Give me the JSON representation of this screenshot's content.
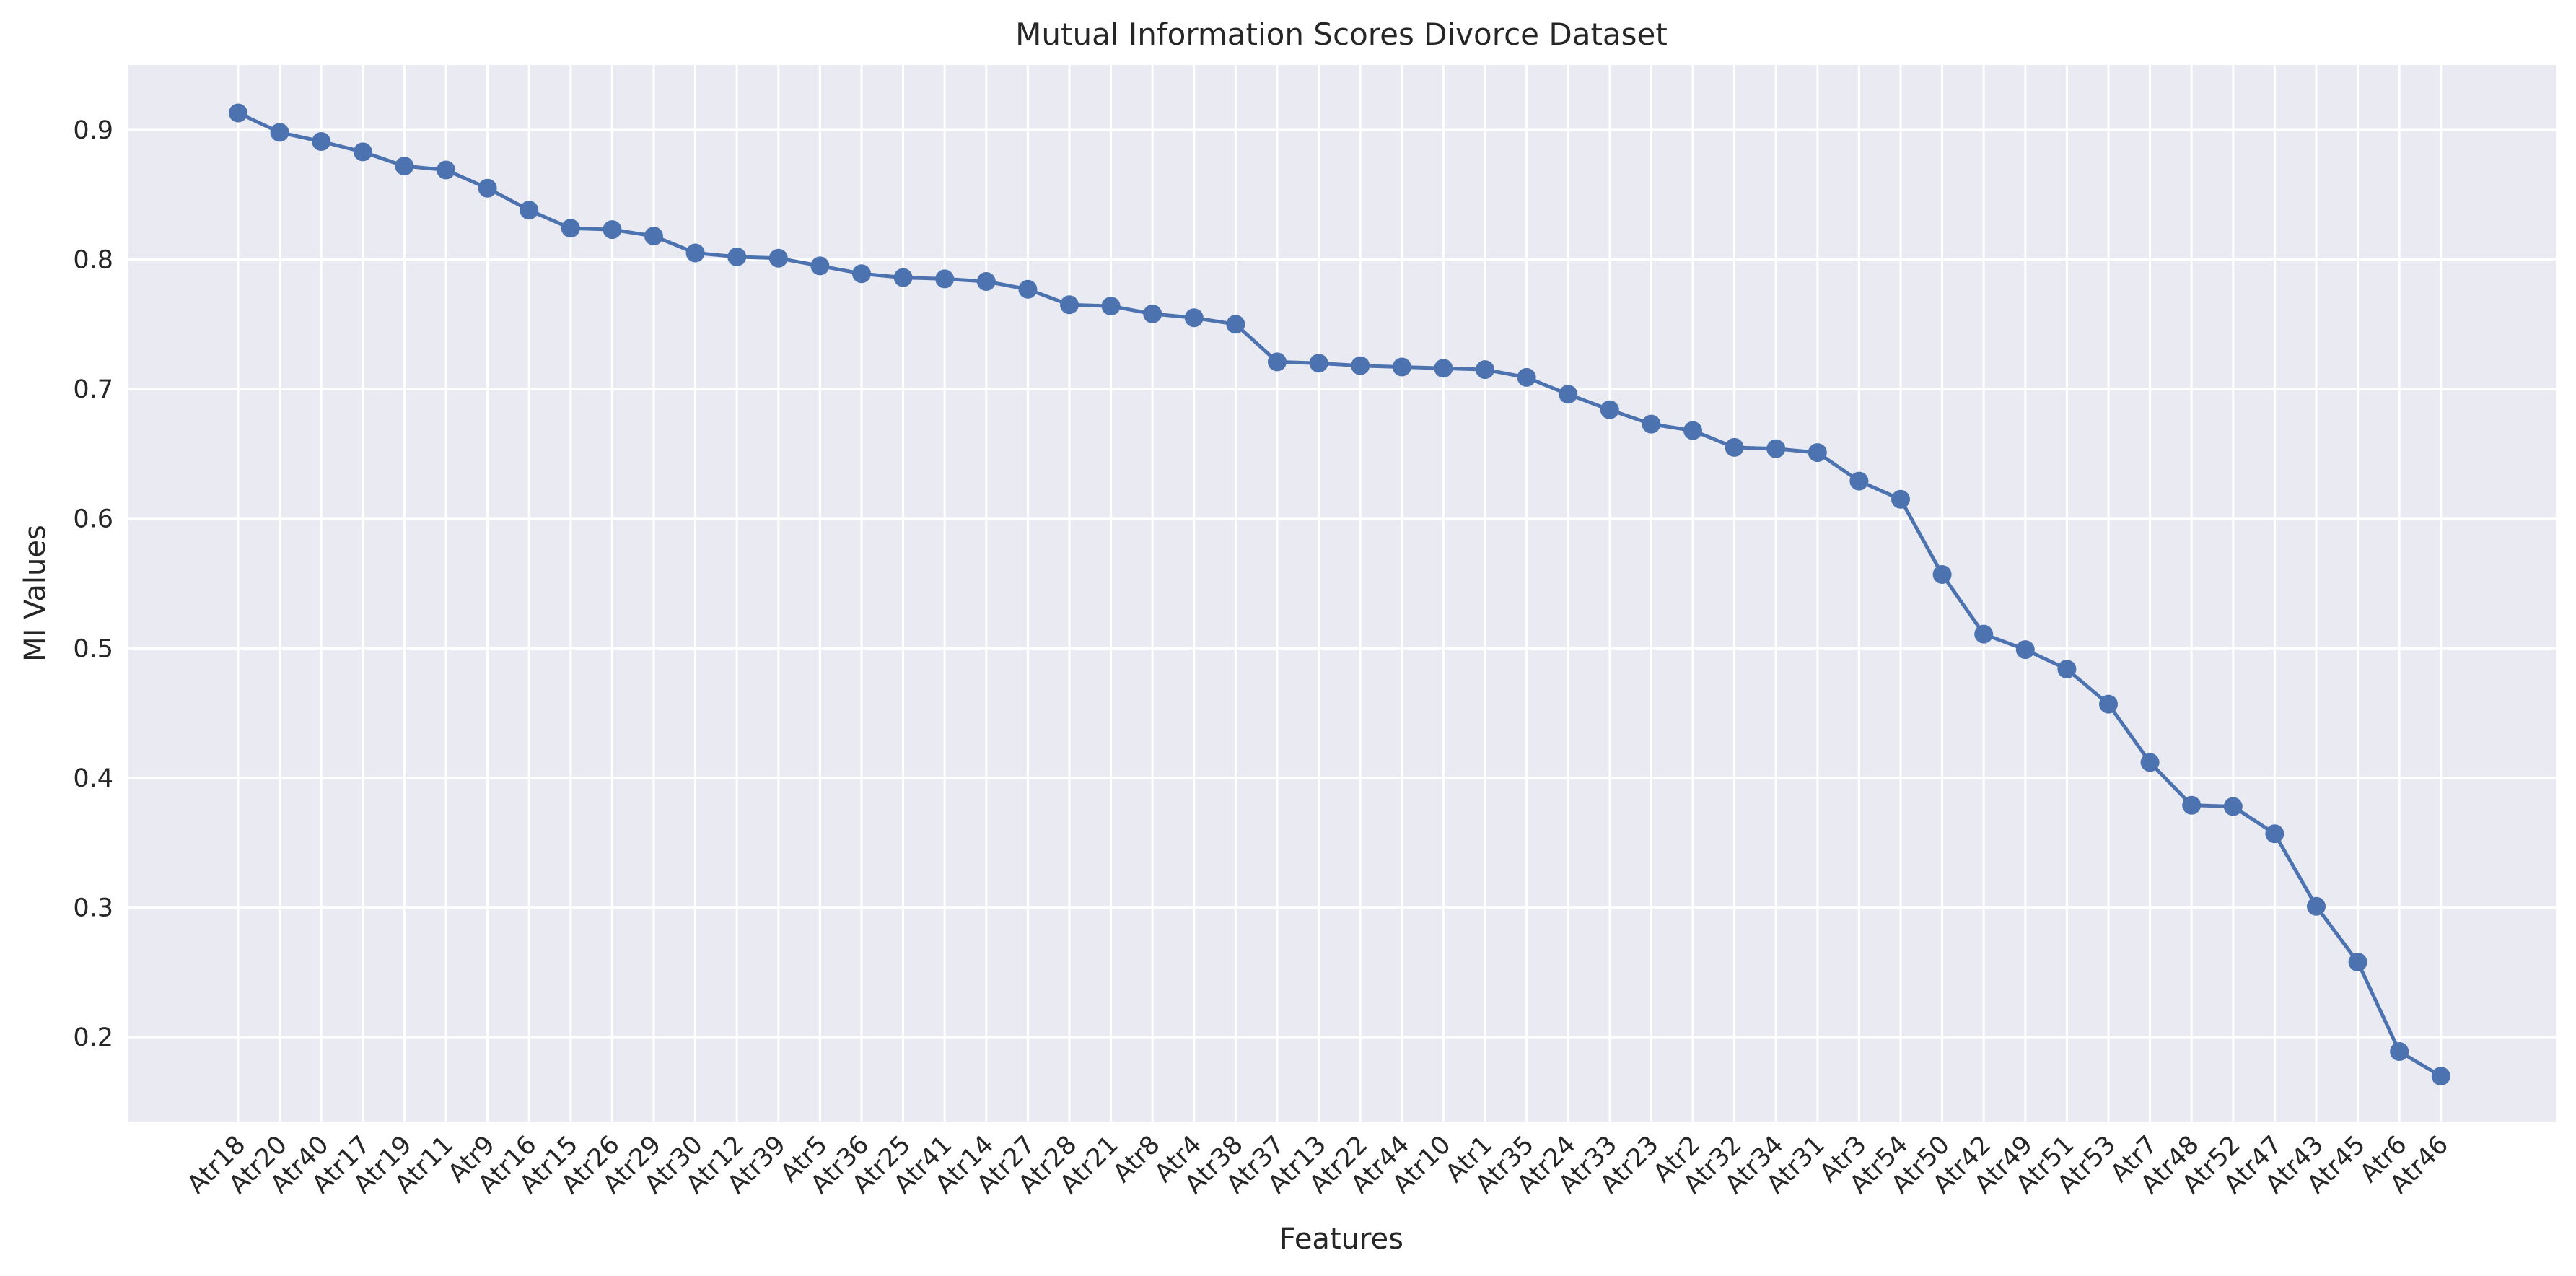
{
  "chart_data": {
    "type": "line",
    "title": "Mutual Information Scores Divorce Dataset",
    "xlabel": "Features",
    "ylabel": "MI Values",
    "ylim": [
      0.135,
      0.95
    ],
    "yticks": [
      0.2,
      0.3,
      0.4,
      0.5,
      0.6,
      0.7,
      0.8,
      0.9
    ],
    "grid": true,
    "marker": "circle",
    "colors": {
      "line": "#4c72b0",
      "plot_background": "#eaeaf2",
      "grid": "#ffffff"
    },
    "categories": [
      "Atr18",
      "Atr20",
      "Atr40",
      "Atr17",
      "Atr19",
      "Atr11",
      "Atr9",
      "Atr16",
      "Atr15",
      "Atr26",
      "Atr29",
      "Atr30",
      "Atr12",
      "Atr39",
      "Atr5",
      "Atr36",
      "Atr25",
      "Atr41",
      "Atr14",
      "Atr27",
      "Atr28",
      "Atr21",
      "Atr8",
      "Atr4",
      "Atr38",
      "Atr37",
      "Atr13",
      "Atr22",
      "Atr44",
      "Atr10",
      "Atr1",
      "Atr35",
      "Atr24",
      "Atr33",
      "Atr23",
      "Atr2",
      "Atr32",
      "Atr34",
      "Atr31",
      "Atr3",
      "Atr54",
      "Atr50",
      "Atr42",
      "Atr49",
      "Atr51",
      "Atr53",
      "Atr7",
      "Atr48",
      "Atr52",
      "Atr47",
      "Atr43",
      "Atr45",
      "Atr6",
      "Atr46"
    ],
    "values": [
      0.913,
      0.898,
      0.891,
      0.883,
      0.872,
      0.869,
      0.855,
      0.838,
      0.824,
      0.823,
      0.818,
      0.805,
      0.802,
      0.801,
      0.795,
      0.789,
      0.786,
      0.785,
      0.783,
      0.777,
      0.765,
      0.764,
      0.758,
      0.755,
      0.75,
      0.721,
      0.72,
      0.718,
      0.717,
      0.716,
      0.715,
      0.709,
      0.696,
      0.684,
      0.673,
      0.668,
      0.655,
      0.654,
      0.651,
      0.629,
      0.615,
      0.557,
      0.511,
      0.499,
      0.484,
      0.457,
      0.412,
      0.379,
      0.378,
      0.357,
      0.301,
      0.258,
      0.189,
      0.17
    ]
  }
}
